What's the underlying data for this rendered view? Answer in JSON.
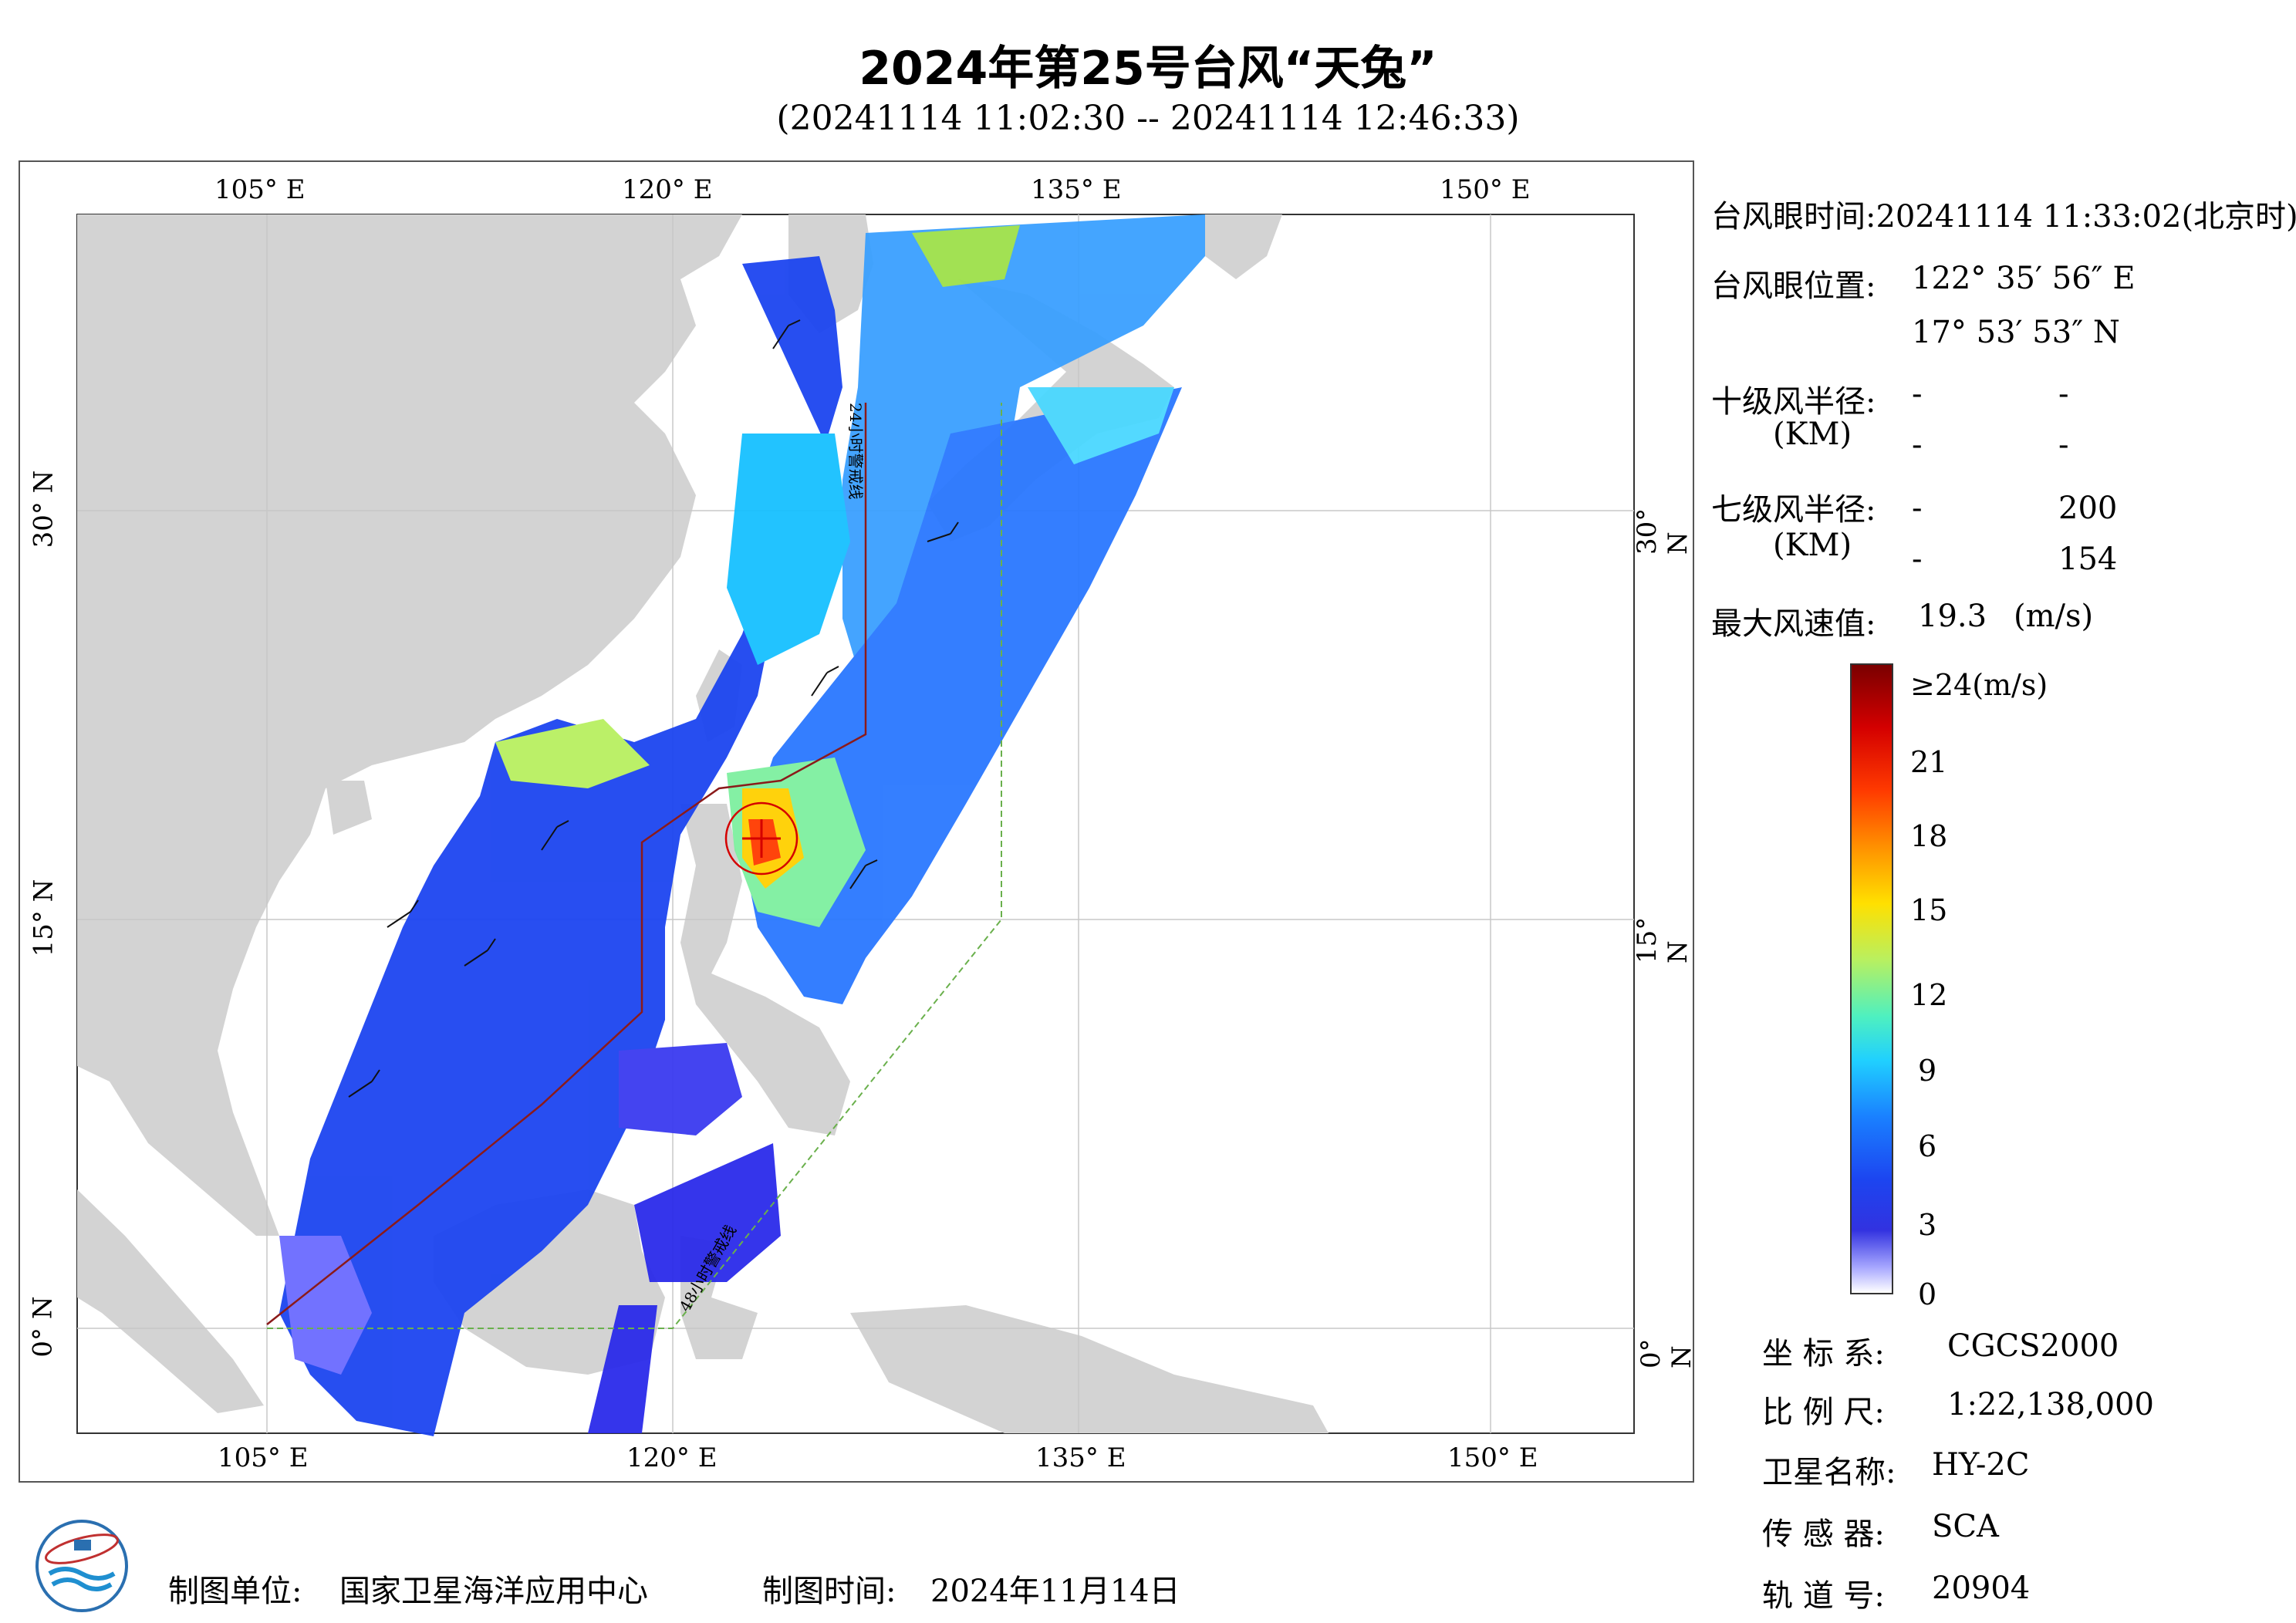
{
  "header": {
    "title": "2024年第25号台风“天兔”",
    "subtitle": "(20241114 11:02:30 -- 20241114 12:46:33)"
  },
  "map": {
    "lon_top_labels": [
      "105° E",
      "120° E",
      "135° E",
      "150° E"
    ],
    "lon_bottom_labels": [
      "105° E",
      "120° E",
      "135° E",
      "150° E"
    ],
    "lat_labels": [
      "30° N",
      "15° N",
      "0° N"
    ],
    "line_label_48h": "48小时警戒线",
    "line_label_24h": "24小时警戒线",
    "colors": {
      "land": "#d3d3d3",
      "ocean": "#ffffff",
      "warning_24h": "#8b1a1a",
      "warning_48h": "#6ab04c",
      "typhoon_center": "#ff0000"
    }
  },
  "info": {
    "eye_time_label": "台风眼时间:",
    "eye_time_value": "20241114 11:33:02(北京时)",
    "eye_pos_label": "台风眼位置:",
    "eye_lon": "122° 35′ 56″ E",
    "eye_lat": "17° 53′ 53″ N",
    "r10_label": "十级风半径:",
    "r10_unit": "(KM)",
    "r10_values": [
      "-",
      "-",
      "-",
      "-"
    ],
    "r7_label": "七级风半径:",
    "r7_unit": "(KM)",
    "r7_values": [
      "-",
      "200",
      "-",
      "154"
    ],
    "max_wind_label": "最大风速值:",
    "max_wind_value": "19.3",
    "max_wind_unit": "(m/s)"
  },
  "colorbar": {
    "top_label": "≥24(m/s)",
    "ticks": [
      "21",
      "18",
      "15",
      "12",
      "9",
      "6",
      "3",
      "0"
    ]
  },
  "meta": {
    "coord_label": "坐 标 系:",
    "coord_value": "CGCS2000",
    "scale_label": "比 例 尺:",
    "scale_value": "1:22,138,000",
    "satellite_label": "卫星名称:",
    "satellite_value": "HY-2C",
    "sensor_label": "传 感 器:",
    "sensor_value": "SCA",
    "orbit_label": "轨 道 号:",
    "orbit_value": "20904"
  },
  "footer": {
    "maker_label": "制图单位:",
    "maker_value": "国家卫星海洋应用中心",
    "date_label": "制图时间:",
    "date_value": "2024年11月14日"
  }
}
